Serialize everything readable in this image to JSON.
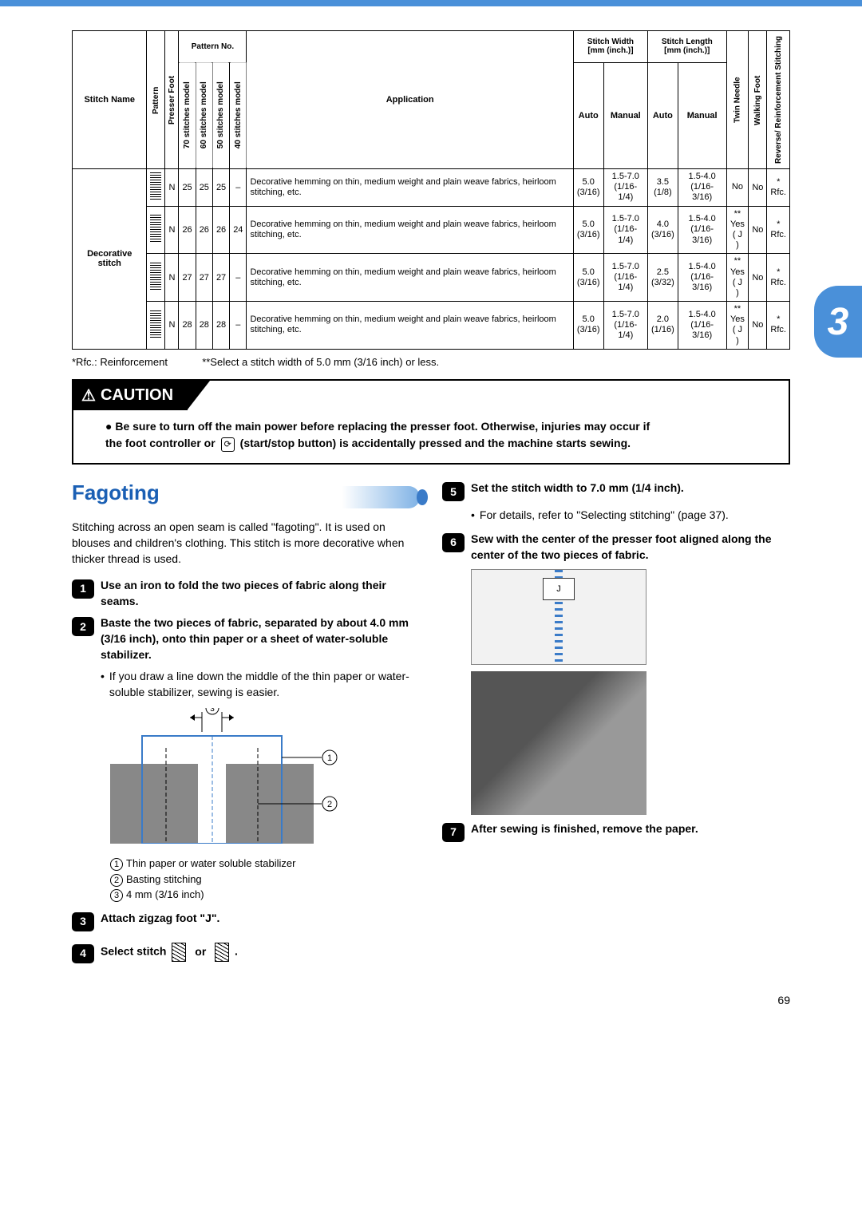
{
  "tab_number": "3",
  "table": {
    "headers": {
      "stitch_name": "Stitch Name",
      "pattern": "Pattern",
      "presser_foot": "Presser Foot",
      "pattern_no": "Pattern No.",
      "m70": "70 stitches model",
      "m60": "60 stitches model",
      "m50": "50 stitches model",
      "m40": "40 stitches model",
      "application": "Application",
      "stitch_width": "Stitch Width",
      "stitch_width_unit": "[mm (inch.)]",
      "stitch_length": "Stitch Length",
      "stitch_length_unit": "[mm (inch.)]",
      "auto": "Auto",
      "manual": "Manual",
      "twin_needle": "Twin Needle",
      "walking_foot": "Walking Foot",
      "reverse": "Reverse/ Reinforcement Stitching"
    },
    "stitch_name_value": "Decorative stitch",
    "rows": [
      {
        "foot": "N",
        "p70": "25",
        "p60": "25",
        "p50": "25",
        "p40": "–",
        "app": "Decorative hemming on thin, medium weight and plain weave fabrics, heirloom stitching, etc.",
        "sw_auto": "5.0",
        "sw_auto2": "(3/16)",
        "sw_man": "1.5-7.0",
        "sw_man2": "(1/16-1/4)",
        "sl_auto": "3.5",
        "sl_auto2": "(1/8)",
        "sl_man": "1.5-4.0",
        "sl_man2": "(1/16-3/16)",
        "twin": "No",
        "twin_sub": "",
        "walk": "No",
        "rev_star": "*",
        "rev": "Rfc."
      },
      {
        "foot": "N",
        "p70": "26",
        "p60": "26",
        "p50": "26",
        "p40": "24",
        "app": "Decorative hemming on thin, medium weight and plain weave fabrics, heirloom stitching, etc.",
        "sw_auto": "5.0",
        "sw_auto2": "(3/16)",
        "sw_man": "1.5-7.0",
        "sw_man2": "(1/16-1/4)",
        "sl_auto": "4.0",
        "sl_auto2": "(3/16)",
        "sl_man": "1.5-4.0",
        "sl_man2": "(1/16-3/16)",
        "twin": "Yes",
        "twin_sub": "( J )",
        "twin_star": "**",
        "walk": "No",
        "rev_star": "*",
        "rev": "Rfc."
      },
      {
        "foot": "N",
        "p70": "27",
        "p60": "27",
        "p50": "27",
        "p40": "–",
        "app": "Decorative hemming on thin, medium weight and plain weave fabrics, heirloom stitching, etc.",
        "sw_auto": "5.0",
        "sw_auto2": "(3/16)",
        "sw_man": "1.5-7.0",
        "sw_man2": "(1/16-1/4)",
        "sl_auto": "2.5",
        "sl_auto2": "(3/32)",
        "sl_man": "1.5-4.0",
        "sl_man2": "(1/16-3/16)",
        "twin": "Yes",
        "twin_sub": "( J )",
        "twin_star": "**",
        "walk": "No",
        "rev_star": "*",
        "rev": "Rfc."
      },
      {
        "foot": "N",
        "p70": "28",
        "p60": "28",
        "p50": "28",
        "p40": "–",
        "app": "Decorative hemming on thin, medium weight and plain weave fabrics, heirloom stitching, etc.",
        "sw_auto": "5.0",
        "sw_auto2": "(3/16)",
        "sw_man": "1.5-7.0",
        "sw_man2": "(1/16-1/4)",
        "sl_auto": "2.0",
        "sl_auto2": "(1/16)",
        "sl_man": "1.5-4.0",
        "sl_man2": "(1/16-3/16)",
        "twin": "Yes",
        "twin_sub": "( J )",
        "twin_star": "**",
        "walk": "No",
        "rev_star": "*",
        "rev": "Rfc."
      }
    ]
  },
  "footnote_a": "*Rfc.: Reinforcement",
  "footnote_b": "**Select a stitch width of 5.0 mm (3/16 inch) or less.",
  "caution": {
    "label": "CAUTION",
    "bullet": "●",
    "line1a": "Be sure to turn off the main power before replacing the presser foot. Otherwise, injuries may occur if",
    "line1b_pre": "the foot controller or ",
    "line1b_post": " (start/stop button) is accidentally pressed and the machine starts sewing."
  },
  "section": {
    "title": "Fagoting",
    "intro": "Stitching across an open seam is called \"fagoting\". It is used on blouses and children's clothing. This stitch is more decorative when thicker thread is used.",
    "steps": [
      {
        "n": "1",
        "text": "Use an iron to fold the two pieces of fabric along their seams.",
        "bold": true
      },
      {
        "n": "2",
        "text": "Baste the two pieces of fabric, separated by about 4.0 mm (3/16 inch), onto thin paper or a sheet of water-soluble stabilizer.",
        "bold": true
      },
      {
        "n": "3",
        "text": "Attach zigzag foot \"J\".",
        "bold": true
      },
      {
        "n": "4",
        "text": "Select stitch",
        "bold": true,
        "extra_or": true
      },
      {
        "n": "5",
        "text": "Set the stitch width to 7.0 mm (1/4 inch).",
        "bold": true
      },
      {
        "n": "6",
        "text": "Sew with the center of the presser foot aligned along the center of the two pieces of fabric.",
        "bold": true
      },
      {
        "n": "7",
        "text": "After sewing is finished, remove the paper.",
        "bold": true
      }
    ],
    "sub2": "If you draw a line down the middle of the thin paper or water-soluble stabilizer, sewing is easier.",
    "sub5": "For details, refer to \"Selecting stitching\" (page 37).",
    "legend": {
      "l1": "Thin paper or water soluble stabilizer",
      "l2": "Basting stitching",
      "l3": "4 mm (3/16 inch)"
    },
    "or": "or",
    "period": "."
  },
  "page_number": "69",
  "colors": {
    "brand_blue": "#4a90d9",
    "title_blue": "#1a5fb4"
  }
}
